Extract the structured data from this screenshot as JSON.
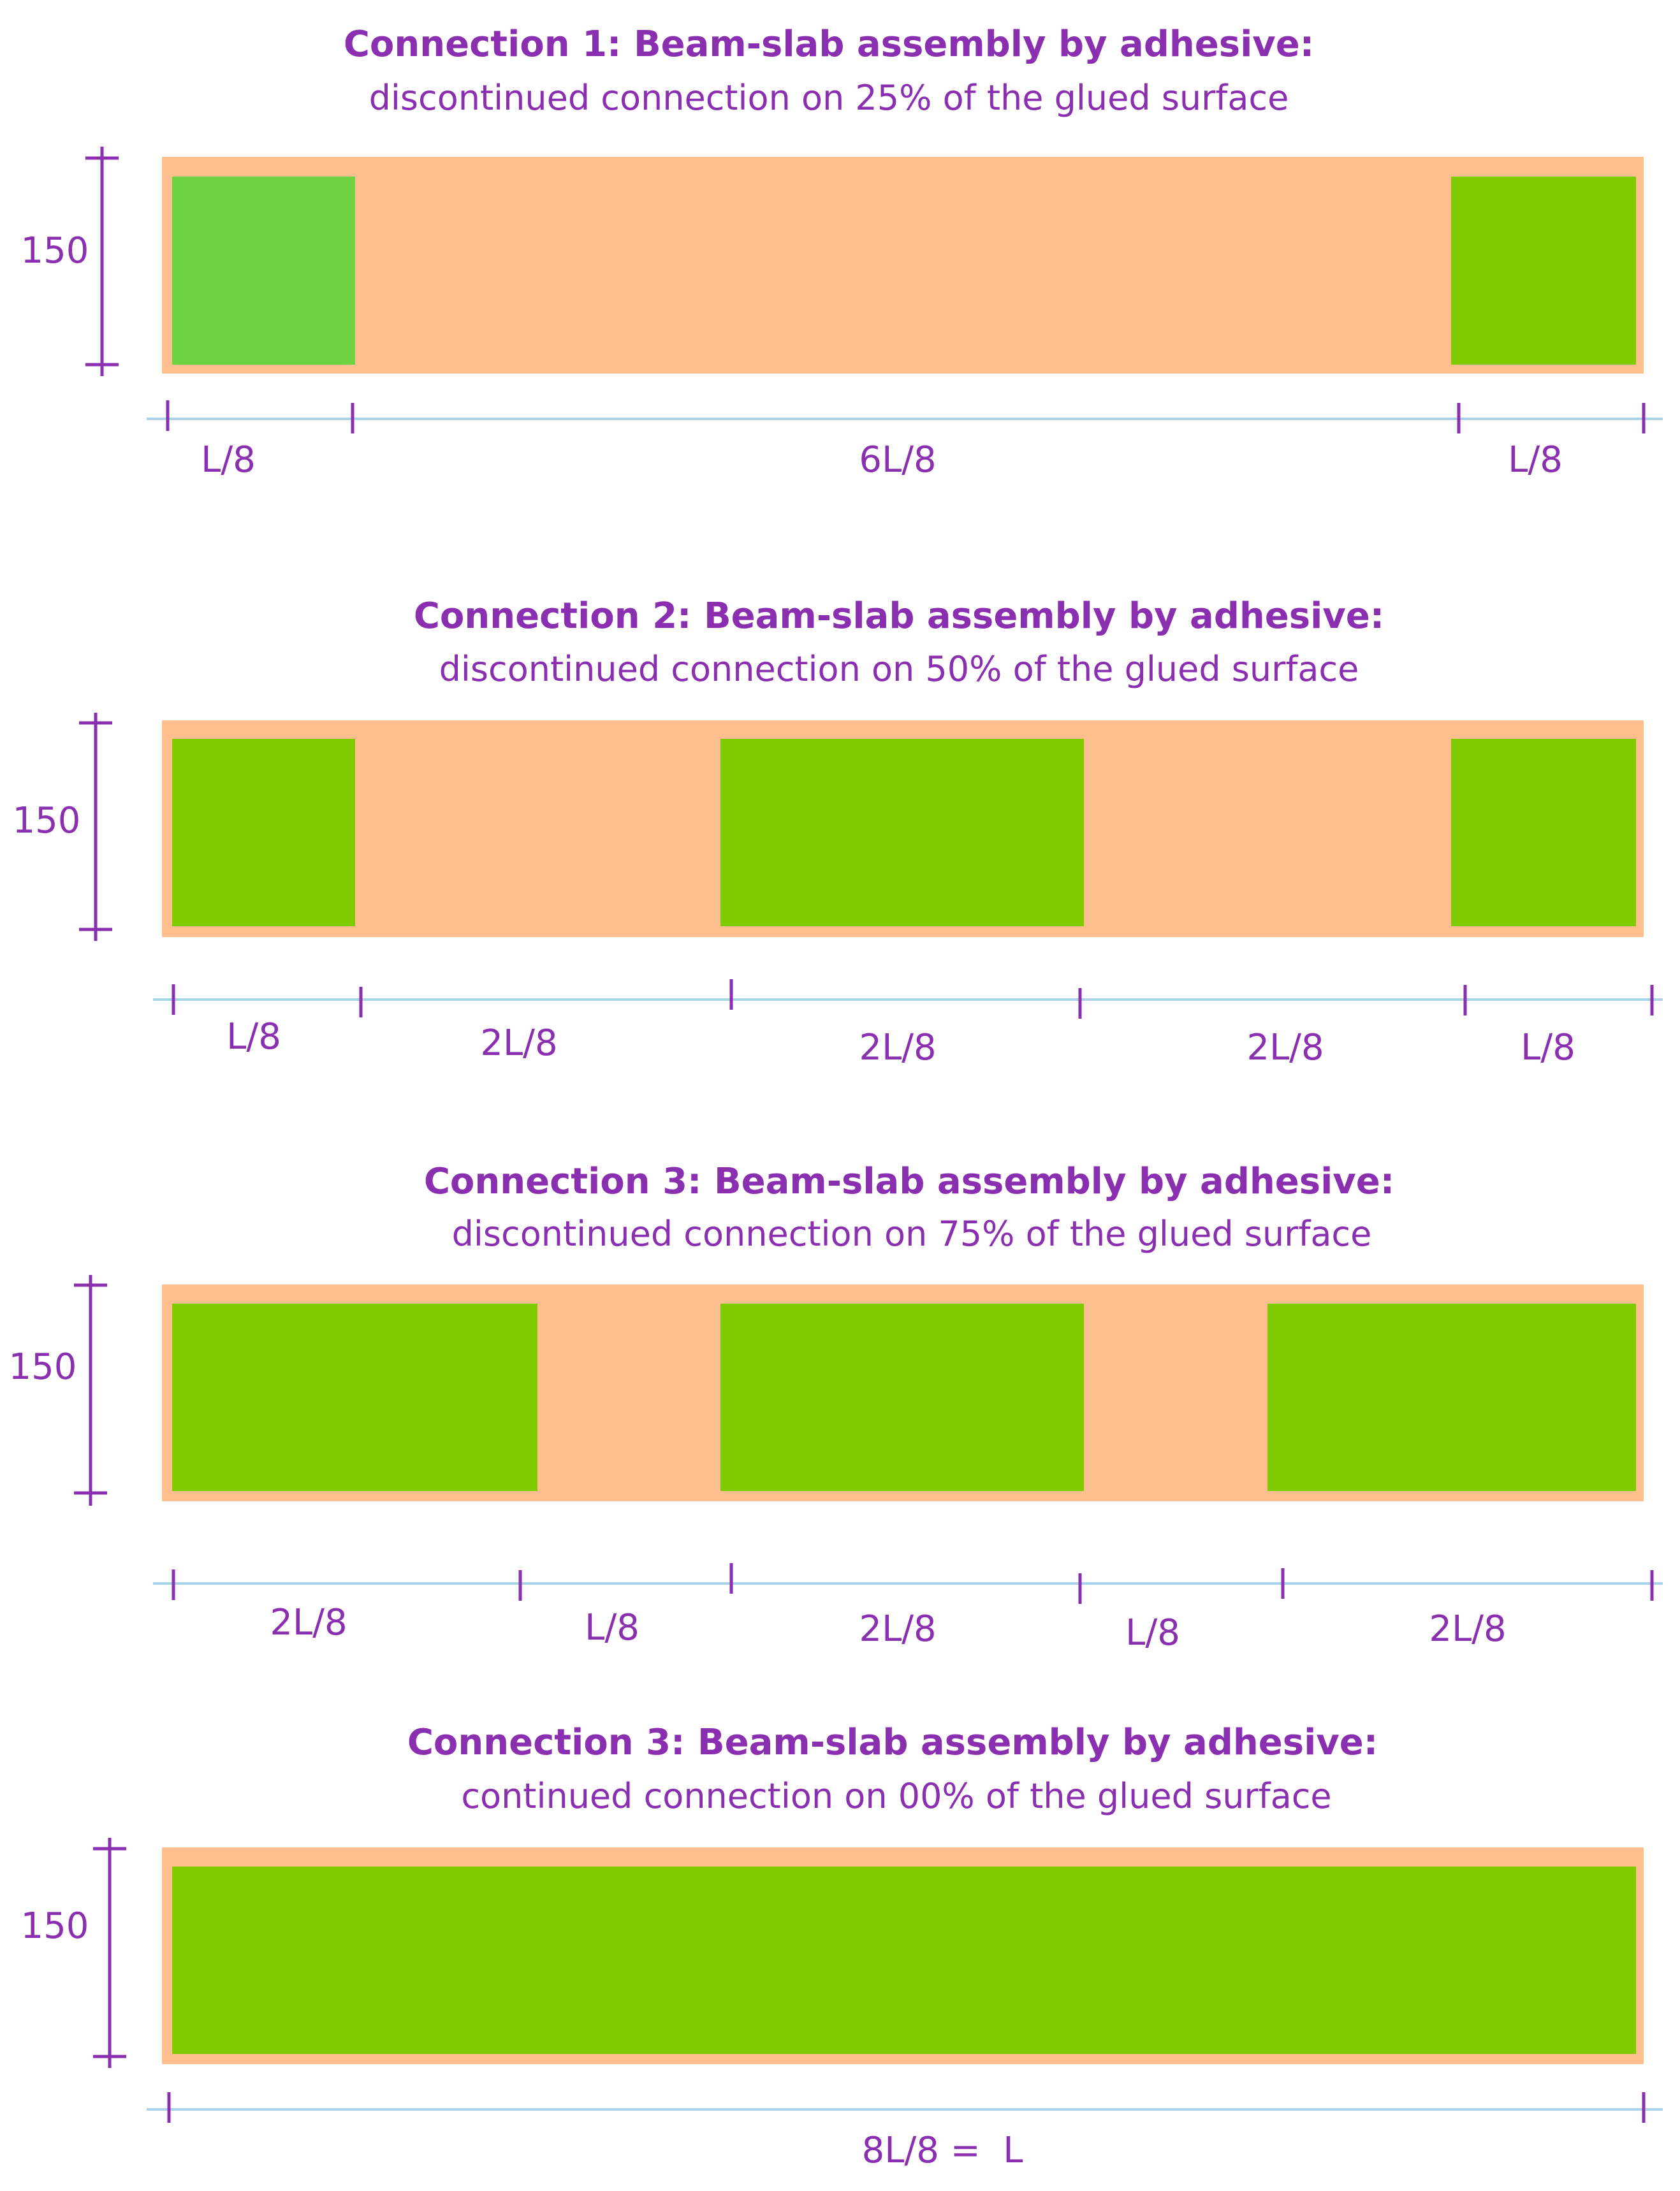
{
  "colors": {
    "title_text": "#8B2FB1",
    "dimension_text": "#8B2FB1",
    "slab_fill": "#FFBE8E",
    "glue_fill_1": "#6DD341",
    "glue_fill": "#80CB00",
    "vertical_dimension_line": "#8B2FB1",
    "horizontal_dimension_line": "#A8D3E8"
  },
  "panels": [
    {
      "title": "Connection 1: Beam-slab assembly by adhesive:",
      "subtitle": "discontinued connection on 25% of the glued surface",
      "height_label": "150",
      "segment_labels": [
        "L/8",
        "6L/8",
        "L/8"
      ]
    },
    {
      "title": "Connection 2: Beam-slab assembly by adhesive:",
      "subtitle": "discontinued connection on 50% of the glued surface",
      "height_label": "150",
      "segment_labels": [
        "L/8",
        "2L/8",
        "2L/8",
        "2L/8",
        "L/8"
      ]
    },
    {
      "title": "Connection 3: Beam-slab assembly by adhesive:",
      "subtitle": "discontinued connection on 75% of the glued surface",
      "height_label": "150",
      "segment_labels": [
        "2L/8",
        "L/8",
        "2L/8",
        "L/8",
        "2L/8"
      ]
    },
    {
      "title": "Connection 3: Beam-slab assembly by adhesive:",
      "subtitle": "continued connection on 00% of the glued surface",
      "height_label": "150",
      "segment_labels": [
        "8L/8 =  L"
      ]
    }
  ]
}
